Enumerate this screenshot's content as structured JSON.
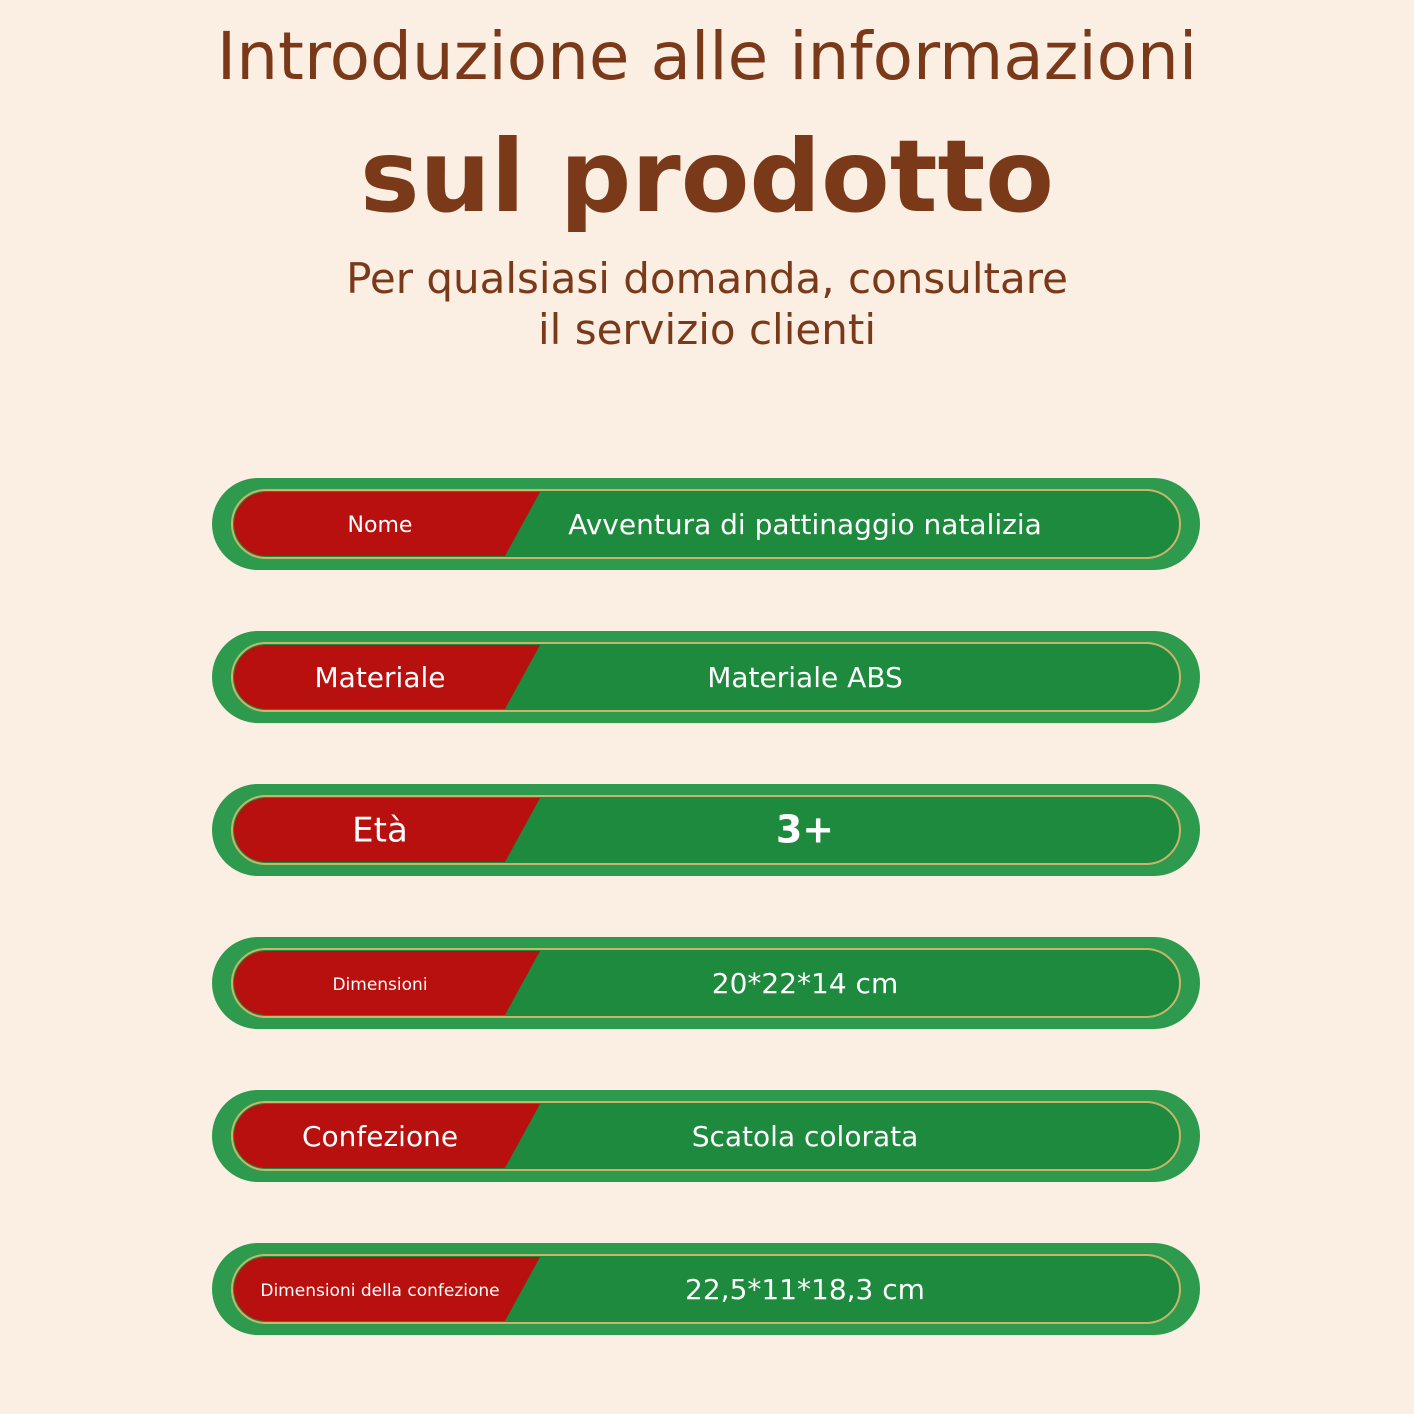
{
  "header": {
    "title_line1": "Introduzione alle informazioni",
    "title_line2": "sul prodotto",
    "subtitle_line1": "Per qualsiasi domanda, consultare",
    "subtitle_line2": "il servizio clienti"
  },
  "rows": [
    {
      "label": "Nome",
      "value": "Avventura di pattinaggio natalizia"
    },
    {
      "label": "Materiale",
      "value": "Materiale ABS"
    },
    {
      "label": "Età",
      "value": "3+"
    },
    {
      "label": "Dimensioni",
      "value": "20*22*14 cm"
    },
    {
      "label": "Confezione",
      "value": "Scatola colorata"
    },
    {
      "label": "Dimensioni della confezione",
      "value": "22,5*11*18,3 cm"
    }
  ]
}
